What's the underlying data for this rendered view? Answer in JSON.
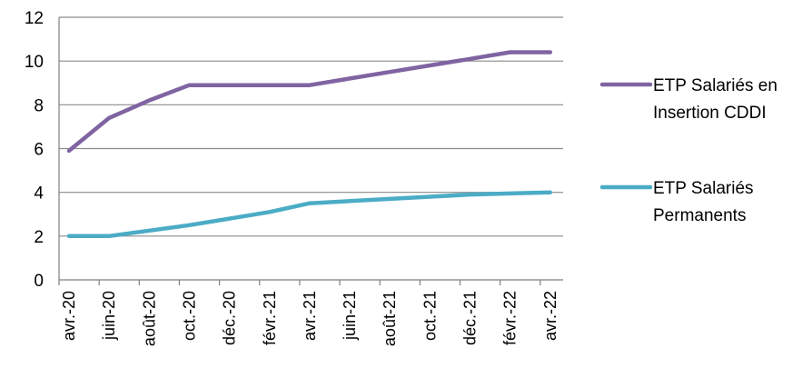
{
  "chart_data": {
    "type": "line",
    "title": "",
    "xlabel": "",
    "ylabel": "",
    "ylim": [
      0,
      12
    ],
    "yticks": [
      0,
      2,
      4,
      6,
      8,
      10,
      12
    ],
    "grid": true,
    "legend_position": "right",
    "x": [
      "avr.-20",
      "juin-20",
      "août-20",
      "oct.-20",
      "déc.-20",
      "févr.-21",
      "avr.-21",
      "juin-21",
      "août-21",
      "oct.-21",
      "déc.-21",
      "févr.-22",
      "avr.-22"
    ],
    "series": [
      {
        "name": "ETP Salariés en Insertion CDDI",
        "legend_lines": [
          "ETP Salariés en",
          "Insertion CDDI"
        ],
        "color": "#8064A2",
        "values": [
          5.9,
          7.4,
          8.2,
          8.9,
          8.9,
          8.9,
          8.9,
          9.2,
          9.5,
          9.8,
          10.1,
          10.4,
          10.4
        ]
      },
      {
        "name": "ETP Salariés Permanents",
        "legend_lines": [
          "ETP Salariés",
          "Permanents"
        ],
        "color": "#4BACC6",
        "values": [
          2.0,
          2.0,
          2.25,
          2.5,
          2.8,
          3.1,
          3.5,
          3.6,
          3.7,
          3.8,
          3.9,
          3.95,
          4.0
        ]
      }
    ]
  }
}
